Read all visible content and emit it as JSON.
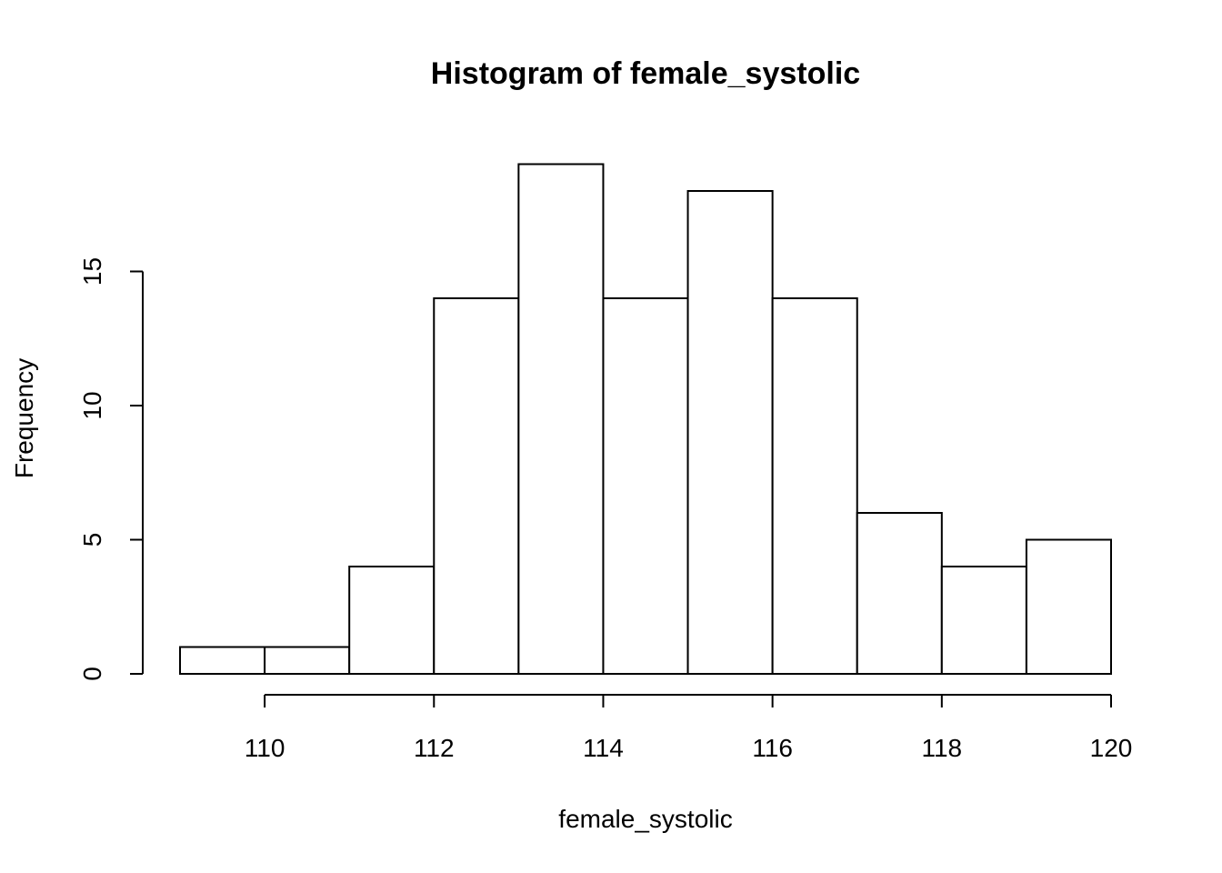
{
  "chart_data": {
    "type": "bar",
    "title": "Histogram of female_systolic",
    "xlabel": "female_systolic",
    "ylabel": "Frequency",
    "bins": [
      {
        "start": 109,
        "end": 110,
        "count": 1
      },
      {
        "start": 110,
        "end": 111,
        "count": 1
      },
      {
        "start": 111,
        "end": 112,
        "count": 4
      },
      {
        "start": 112,
        "end": 113,
        "count": 14
      },
      {
        "start": 113,
        "end": 114,
        "count": 19
      },
      {
        "start": 114,
        "end": 115,
        "count": 14
      },
      {
        "start": 115,
        "end": 116,
        "count": 18
      },
      {
        "start": 116,
        "end": 117,
        "count": 14
      },
      {
        "start": 117,
        "end": 118,
        "count": 6
      },
      {
        "start": 118,
        "end": 119,
        "count": 4
      },
      {
        "start": 119,
        "end": 120,
        "count": 5
      }
    ],
    "xlim": [
      109,
      120
    ],
    "ylim": [
      0,
      19
    ],
    "x_ticks": [
      110,
      112,
      114,
      116,
      118,
      120
    ],
    "y_ticks": [
      0,
      5,
      10,
      15
    ],
    "grid": false,
    "legend": "none",
    "bar_fill": "#ffffff",
    "bar_stroke": "#000000"
  }
}
